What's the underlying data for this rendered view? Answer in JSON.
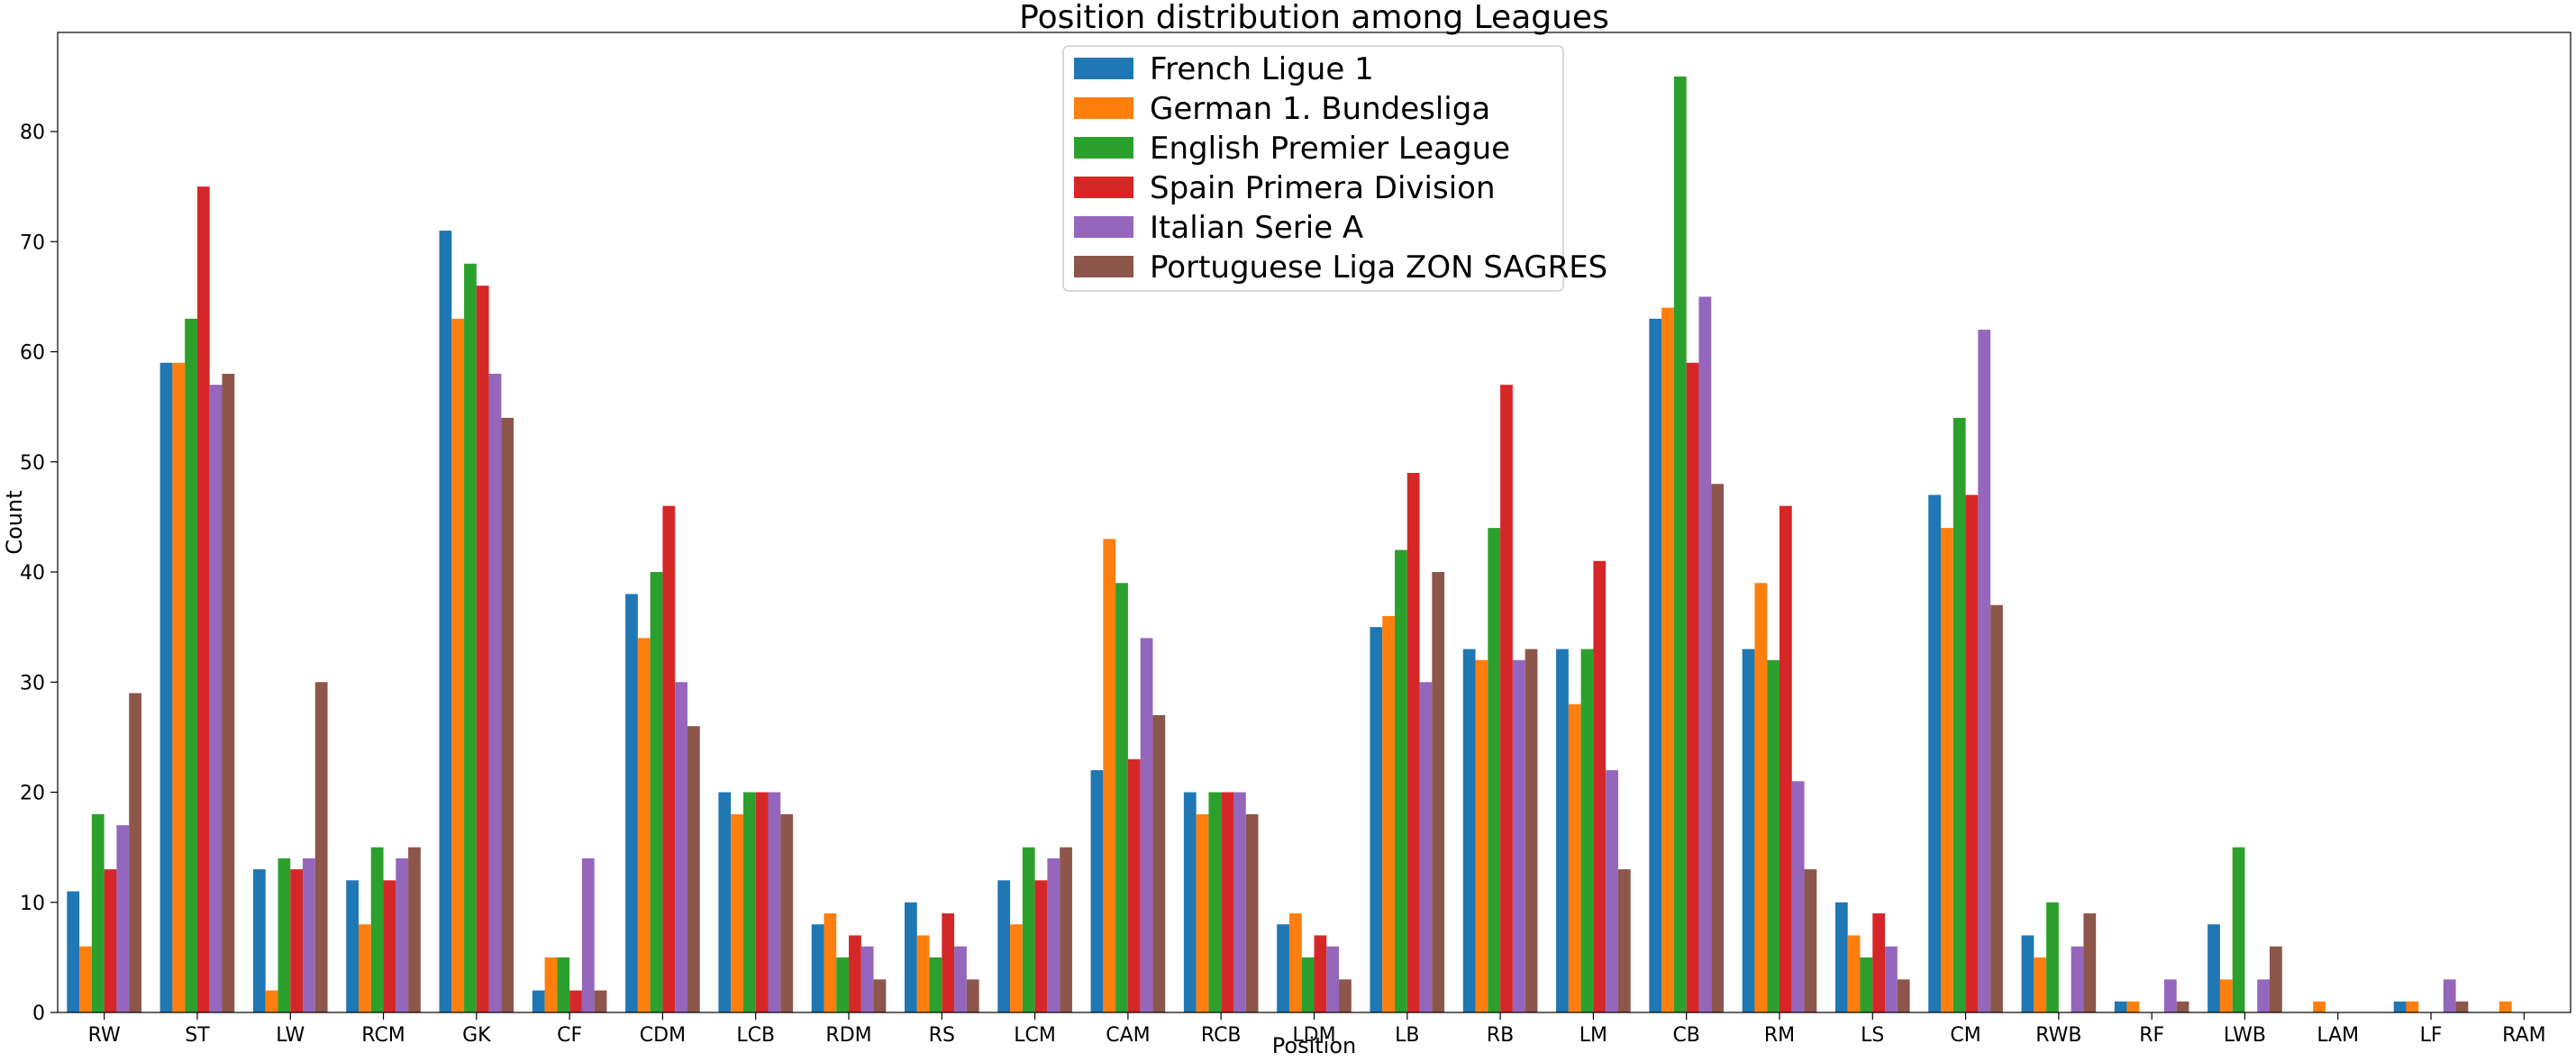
{
  "chart_data": {
    "type": "bar",
    "title": "Position distribution among Leagues",
    "xlabel": "Position",
    "ylabel": "Count",
    "ylim": [
      0,
      89
    ],
    "yticks": [
      0,
      10,
      20,
      30,
      40,
      50,
      60,
      70,
      80
    ],
    "grid": false,
    "legend_position": "top-center",
    "categories": [
      "RW",
      "ST",
      "LW",
      "RCM",
      "GK",
      "CF",
      "CDM",
      "LCB",
      "RDM",
      "RS",
      "LCM",
      "CAM",
      "RCB",
      "LDM",
      "LB",
      "RB",
      "LM",
      "CB",
      "RM",
      "LS",
      "CM",
      "RWB",
      "RF",
      "LWB",
      "LAM",
      "LF",
      "RAM"
    ],
    "series": [
      {
        "name": "French Ligue 1",
        "color": "#1f77b4",
        "values": [
          11,
          59,
          13,
          12,
          71,
          2,
          38,
          20,
          8,
          10,
          12,
          22,
          20,
          8,
          35,
          33,
          33,
          63,
          33,
          10,
          47,
          7,
          1,
          8,
          0,
          1,
          0
        ]
      },
      {
        "name": "German 1. Bundesliga",
        "color": "#ff7f0e",
        "values": [
          6,
          59,
          2,
          8,
          63,
          5,
          34,
          18,
          9,
          7,
          8,
          43,
          18,
          9,
          36,
          32,
          28,
          64,
          39,
          7,
          44,
          5,
          1,
          3,
          1,
          1,
          1
        ]
      },
      {
        "name": "English Premier League",
        "color": "#2ca02c",
        "values": [
          18,
          63,
          14,
          15,
          68,
          5,
          40,
          20,
          5,
          5,
          15,
          39,
          20,
          5,
          42,
          44,
          33,
          85,
          32,
          5,
          54,
          10,
          0,
          15,
          0,
          0,
          0
        ]
      },
      {
        "name": "Spain Primera Division",
        "color": "#d62728",
        "values": [
          13,
          75,
          13,
          12,
          66,
          2,
          46,
          20,
          7,
          9,
          12,
          23,
          20,
          7,
          49,
          57,
          41,
          59,
          46,
          9,
          47,
          0,
          0,
          0,
          0,
          0,
          0
        ]
      },
      {
        "name": "Italian Serie A",
        "color": "#9467bd",
        "values": [
          17,
          57,
          14,
          14,
          58,
          14,
          30,
          20,
          6,
          6,
          14,
          34,
          20,
          6,
          30,
          32,
          22,
          65,
          21,
          6,
          62,
          6,
          3,
          3,
          0,
          3,
          0
        ]
      },
      {
        "name": "Portuguese Liga ZON SAGRES",
        "color": "#8c564b",
        "values": [
          29,
          58,
          30,
          15,
          54,
          2,
          26,
          18,
          3,
          3,
          15,
          27,
          18,
          3,
          40,
          33,
          13,
          48,
          13,
          3,
          37,
          9,
          1,
          6,
          0,
          1,
          0
        ]
      }
    ]
  }
}
